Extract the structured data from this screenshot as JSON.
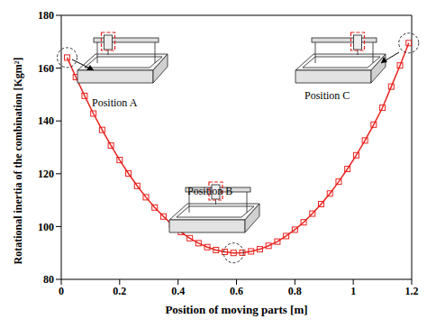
{
  "chart_data": {
    "type": "line",
    "x_label": "Position of moving parts [m]",
    "y_label": "Rotational inertia of the combination [Kgm²]",
    "x": [
      0.02,
      0.05,
      0.08,
      0.11,
      0.14,
      0.17,
      0.2,
      0.23,
      0.26,
      0.29,
      0.32,
      0.35,
      0.38,
      0.41,
      0.44,
      0.47,
      0.5,
      0.53,
      0.56,
      0.59,
      0.62,
      0.65,
      0.68,
      0.71,
      0.74,
      0.77,
      0.8,
      0.83,
      0.86,
      0.89,
      0.92,
      0.95,
      0.98,
      1.01,
      1.04,
      1.07,
      1.1,
      1.13,
      1.16,
      1.19
    ],
    "values": [
      164.0,
      156.6,
      149.5,
      142.8,
      136.6,
      130.7,
      125.2,
      120.1,
      115.4,
      111.1,
      107.2,
      103.8,
      100.6,
      97.9,
      95.6,
      93.7,
      92.2,
      91.1,
      90.4,
      90.0,
      90.1,
      90.6,
      91.4,
      92.7,
      94.3,
      96.4,
      98.8,
      101.6,
      104.9,
      108.5,
      112.5,
      117.0,
      121.8,
      127.0,
      132.6,
      138.6,
      145.0,
      153.0,
      161.0,
      169.5
    ],
    "color": "#e8231f",
    "marker": "square",
    "line_style": "solid",
    "grid": false,
    "xlim": [
      0,
      1.2
    ],
    "xticks": [
      0,
      0.2,
      0.4,
      0.6,
      0.8,
      1,
      1.2
    ],
    "ylim": [
      80,
      180
    ],
    "yticks": [
      80,
      100,
      120,
      140,
      160,
      180
    ],
    "annotations": [
      "Position A",
      "Position B",
      "Position C"
    ]
  }
}
